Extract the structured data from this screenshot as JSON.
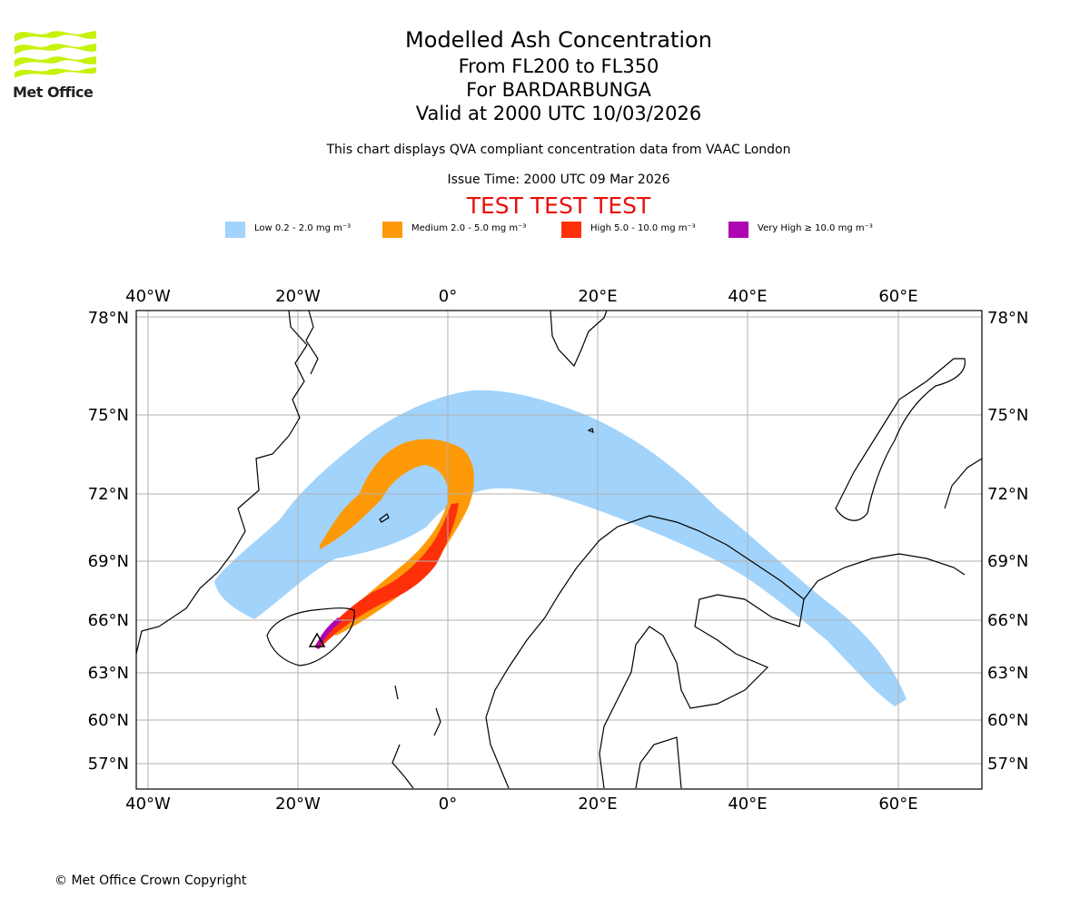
{
  "logo": {
    "text": "Met Office"
  },
  "header": {
    "title": "Modelled Ash Concentration",
    "levels": "From FL200 to FL350",
    "volcano": "For BARDARBUNGA",
    "valid": "Valid at 2000 UTC 10/03/2026"
  },
  "notes": {
    "compliance": "This chart displays QVA compliant concentration data from VAAC London",
    "issue_time": "Issue Time: 2000 UTC 09 Mar 2026"
  },
  "test_banner": "TEST TEST TEST",
  "legend": [
    {
      "label": "Low 0.2 - 2.0 mg m⁻³",
      "color": "#a2d3fb"
    },
    {
      "label": "Medium 2.0 - 5.0 mg m⁻³",
      "color": "#fe9a08"
    },
    {
      "label": "High 5.0 - 10.0 mg m⁻³",
      "color": "#fe300a"
    },
    {
      "label": "Very High  ≥  10.0 mg m⁻³",
      "color": "#ad06b2"
    }
  ],
  "map": {
    "lon_ticks": [
      "40°W",
      "20°W",
      "0°",
      "20°E",
      "40°E",
      "60°E"
    ],
    "lat_ticks": [
      "78°N",
      "75°N",
      "72°N",
      "69°N",
      "66°N",
      "63°N",
      "60°N",
      "57°N"
    ],
    "colors": {
      "grid": "#b0b0b0",
      "coast": "#000000"
    }
  },
  "copyright": "© Met Office Crown Copyright"
}
